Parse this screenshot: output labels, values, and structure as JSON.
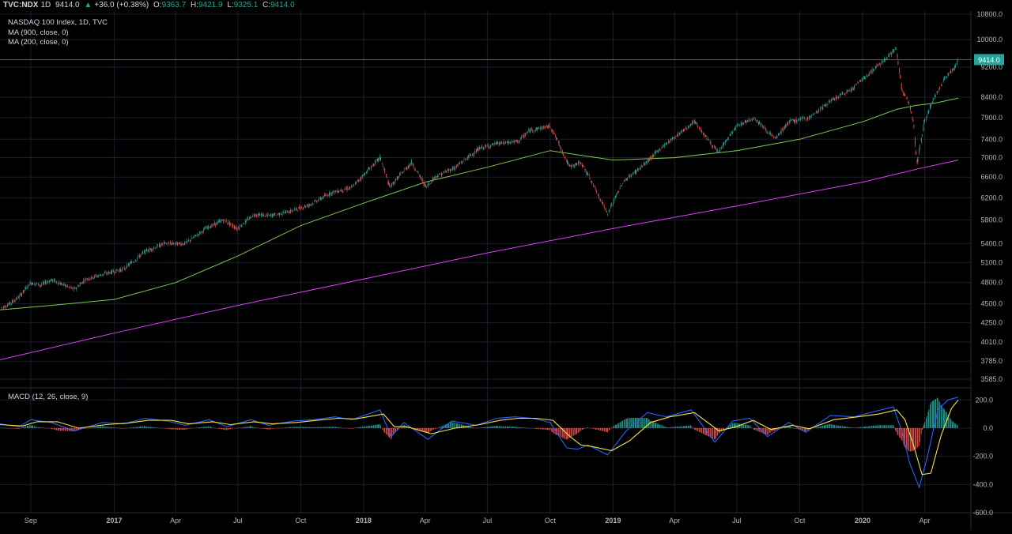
{
  "header": {
    "symbol": "TVC:NDX",
    "interval": "1D",
    "last": "9414.0",
    "change": "+36.0 (+0.38%)",
    "open_label": "O:",
    "open": "9363.7",
    "high_label": "H:",
    "high": "9421.9",
    "low_label": "L:",
    "low": "9325.1",
    "close_label": "C:",
    "close": "9414.0"
  },
  "legend": {
    "title": "NASDAQ 100 Index, 1D, TVC",
    "ma1": "MA (900, close, 0)",
    "ma2": "MA (200, close, 0)",
    "macd": "MACD (12, 26, close, 9)"
  },
  "colors": {
    "background": "#000000",
    "grid": "#1c1f2a",
    "up": "#26a69a",
    "down": "#ef5350",
    "ma900": "#e040fb",
    "ma200": "#7ec850",
    "macd_line": "#2962ff",
    "signal_line": "#f5e24a",
    "price_line": "#26a69a"
  },
  "chart_data": [
    {
      "type": "line",
      "title": "NASDAQ 100 Index, 1D, TVC",
      "scale": "log",
      "ylim": [
        3500,
        10900
      ],
      "y_ticks": [
        "10800.0",
        "10000.0",
        "9200.0",
        "8400.0",
        "7900.0",
        "7400.0",
        "7000.0",
        "6600.0",
        "6200.0",
        "5800.0",
        "5400.0",
        "5100.0",
        "4800.0",
        "4500.0",
        "4250.0",
        "4010.0",
        "3785.0",
        "3585.0"
      ],
      "x_ticks": [
        "Sep",
        "2017",
        "Apr",
        "Jul",
        "Oct",
        "2018",
        "Apr",
        "Jul",
        "Oct",
        "2019",
        "Apr",
        "Jul",
        "Oct",
        "2020",
        "Apr"
      ],
      "x_tick_dates": [
        "2016-09-01",
        "2017-01-01",
        "2017-04-01",
        "2017-07-01",
        "2017-10-01",
        "2018-01-01",
        "2018-04-01",
        "2018-07-01",
        "2018-10-01",
        "2019-01-01",
        "2019-04-01",
        "2019-07-01",
        "2019-10-01",
        "2020-01-01",
        "2020-04-01"
      ],
      "x_range": [
        "2016-07-18",
        "2020-05-20"
      ],
      "last_price": 9414.0,
      "series": [
        {
          "kind": "price",
          "x": [
            "2016-07-20",
            "2016-08-01",
            "2016-08-15",
            "2016-09-01",
            "2016-09-15",
            "2016-10-01",
            "2016-11-04",
            "2016-11-20",
            "2016-12-15",
            "2017-01-15",
            "2017-02-15",
            "2017-03-15",
            "2017-04-15",
            "2017-05-15",
            "2017-06-10",
            "2017-06-30",
            "2017-07-25",
            "2017-08-15",
            "2017-09-15",
            "2017-10-15",
            "2017-11-15",
            "2017-12-15",
            "2018-01-25",
            "2018-02-08",
            "2018-03-12",
            "2018-04-02",
            "2018-04-15",
            "2018-05-15",
            "2018-06-20",
            "2018-07-15",
            "2018-08-15",
            "2018-09-01",
            "2018-10-01",
            "2018-10-29",
            "2018-11-15",
            "2018-12-24",
            "2019-01-15",
            "2019-02-15",
            "2019-03-15",
            "2019-04-30",
            "2019-06-03",
            "2019-07-01",
            "2019-07-26",
            "2019-08-26",
            "2019-09-15",
            "2019-10-15",
            "2019-11-15",
            "2019-12-15",
            "2020-01-15",
            "2020-02-19",
            "2020-02-28",
            "2020-03-09",
            "2020-03-16",
            "2020-03-20",
            "2020-03-31",
            "2020-04-15",
            "2020-04-30",
            "2020-05-15",
            "2020-05-20"
          ],
          "y": [
            4450,
            4500,
            4600,
            4800,
            4760,
            4840,
            4700,
            4850,
            4920,
            5000,
            5270,
            5400,
            5400,
            5650,
            5800,
            5650,
            5900,
            5870,
            5950,
            6080,
            6300,
            6400,
            7000,
            6400,
            6900,
            6400,
            6600,
            6800,
            7200,
            7300,
            7350,
            7600,
            7700,
            6800,
            6900,
            5900,
            6500,
            6850,
            7250,
            7800,
            7100,
            7700,
            7900,
            7400,
            7800,
            7900,
            8300,
            8600,
            9100,
            9720,
            8500,
            8300,
            7700,
            6800,
            7800,
            8400,
            8900,
            9200,
            9414
          ]
        },
        {
          "name": "",
          "kind": "ma200",
          "x": [
            "2016-07-18",
            "2016-10-01",
            "2017-01-01",
            "2017-04-01",
            "2017-07-01",
            "2017-10-01",
            "2018-01-01",
            "2018-04-01",
            "2018-07-01",
            "2018-10-01",
            "2018-11-15",
            "2019-01-01",
            "2019-04-01",
            "2019-07-01",
            "2019-10-01",
            "2020-01-01",
            "2020-02-20",
            "2020-03-20",
            "2020-04-15",
            "2020-05-20"
          ],
          "y": [
            4420,
            4480,
            4560,
            4800,
            5200,
            5700,
            6100,
            6500,
            6800,
            7150,
            7050,
            6950,
            7000,
            7150,
            7400,
            7800,
            8100,
            8200,
            8250,
            8380
          ]
        },
        {
          "name": "",
          "kind": "ma900",
          "x": [
            "2016-07-18",
            "2017-01-01",
            "2017-07-01",
            "2018-01-01",
            "2018-07-01",
            "2019-01-01",
            "2019-07-01",
            "2020-01-01",
            "2020-03-20",
            "2020-05-20"
          ],
          "y": [
            3800,
            4120,
            4480,
            4850,
            5250,
            5650,
            6050,
            6500,
            6760,
            6950
          ]
        }
      ]
    },
    {
      "type": "bar",
      "title": "MACD (12, 26, close, 9)",
      "ylim": [
        -600,
        280
      ],
      "y_ticks": [
        "200.0",
        "0.0",
        "-200.0",
        "-400.0",
        "-600.0"
      ],
      "series": [
        {
          "name": "",
          "kind": "macd",
          "x": [
            "2016-07-18",
            "2016-08-15",
            "2016-09-01",
            "2016-10-01",
            "2016-11-04",
            "2016-12-15",
            "2017-01-15",
            "2017-02-15",
            "2017-03-20",
            "2017-04-15",
            "2017-05-20",
            "2017-06-15",
            "2017-07-20",
            "2017-08-15",
            "2017-09-20",
            "2017-10-20",
            "2017-11-20",
            "2017-12-15",
            "2018-01-25",
            "2018-02-10",
            "2018-03-01",
            "2018-04-05",
            "2018-05-10",
            "2018-06-15",
            "2018-07-15",
            "2018-08-10",
            "2018-09-05",
            "2018-10-01",
            "2018-10-25",
            "2018-11-10",
            "2018-11-25",
            "2018-12-24",
            "2019-01-20",
            "2019-02-20",
            "2019-03-20",
            "2019-04-25",
            "2019-05-30",
            "2019-06-25",
            "2019-07-20",
            "2019-08-15",
            "2019-09-15",
            "2019-10-10",
            "2019-11-15",
            "2019-12-20",
            "2020-01-20",
            "2020-02-15",
            "2020-02-28",
            "2020-03-10",
            "2020-03-24",
            "2020-04-05",
            "2020-04-20",
            "2020-05-05",
            "2020-05-20"
          ],
          "y": [
            30,
            10,
            60,
            40,
            -20,
            40,
            30,
            70,
            50,
            20,
            60,
            10,
            60,
            20,
            50,
            60,
            80,
            60,
            130,
            -60,
            40,
            -80,
            50,
            20,
            70,
            80,
            70,
            40,
            -140,
            -150,
            -120,
            -190,
            -20,
            110,
            80,
            130,
            -100,
            50,
            70,
            -60,
            40,
            -30,
            90,
            80,
            120,
            150,
            -30,
            -250,
            -420,
            -200,
            130,
            200,
            220
          ]
        },
        {
          "name": "",
          "kind": "signal",
          "x": [
            "2016-07-18",
            "2016-08-20",
            "2016-09-10",
            "2016-10-10",
            "2016-11-10",
            "2016-12-20",
            "2017-01-20",
            "2017-02-20",
            "2017-03-25",
            "2017-04-20",
            "2017-05-25",
            "2017-06-20",
            "2017-07-25",
            "2017-08-20",
            "2017-09-25",
            "2017-10-25",
            "2017-11-25",
            "2017-12-20",
            "2018-01-30",
            "2018-02-15",
            "2018-03-05",
            "2018-04-10",
            "2018-05-15",
            "2018-06-20",
            "2018-07-20",
            "2018-08-15",
            "2018-09-10",
            "2018-10-05",
            "2018-10-30",
            "2018-11-15",
            "2018-11-30",
            "2018-12-30",
            "2019-01-25",
            "2019-02-25",
            "2019-03-25",
            "2019-04-30",
            "2019-06-05",
            "2019-06-30",
            "2019-07-25",
            "2019-08-20",
            "2019-09-20",
            "2019-10-15",
            "2019-11-20",
            "2019-12-25",
            "2020-01-25",
            "2020-02-20",
            "2020-03-03",
            "2020-03-15",
            "2020-03-28",
            "2020-04-10",
            "2020-04-25",
            "2020-05-10",
            "2020-05-20"
          ],
          "y": [
            25,
            15,
            45,
            45,
            0,
            25,
            35,
            55,
            55,
            30,
            45,
            25,
            45,
            30,
            40,
            55,
            70,
            65,
            100,
            10,
            10,
            -40,
            0,
            25,
            55,
            70,
            70,
            55,
            -60,
            -120,
            -130,
            -160,
            -90,
            40,
            80,
            110,
            -20,
            10,
            55,
            -10,
            20,
            -5,
            60,
            80,
            100,
            130,
            60,
            -110,
            -330,
            -320,
            -50,
            140,
            200
          ]
        },
        {
          "name": "",
          "kind": "histogram",
          "note": "histogram = macd - signal",
          "x": [
            "2016-08-15",
            "2016-10-01",
            "2016-11-04",
            "2017-02-15",
            "2017-06-15",
            "2018-01-25",
            "2018-02-10",
            "2018-04-05",
            "2018-10-25",
            "2018-12-24",
            "2019-02-20",
            "2019-05-30",
            "2019-08-15",
            "2020-01-20",
            "2020-03-10",
            "2020-03-24",
            "2020-04-05",
            "2020-04-20",
            "2020-05-05"
          ],
          "y": [
            -5,
            -5,
            -20,
            15,
            -15,
            30,
            -70,
            -40,
            -80,
            -30,
            70,
            -80,
            -50,
            20,
            -140,
            -90,
            120,
            180,
            60
          ]
        }
      ]
    }
  ]
}
